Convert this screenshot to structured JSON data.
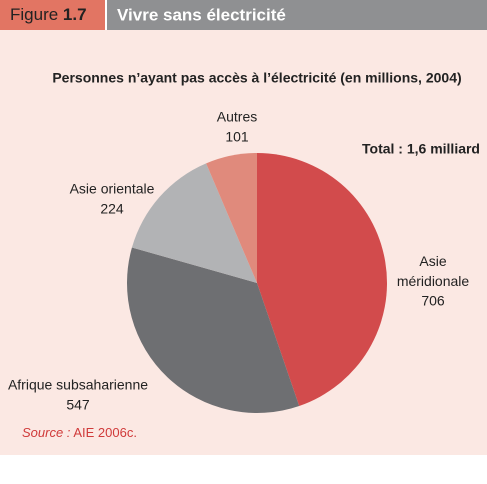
{
  "header": {
    "label": "Figure",
    "number": "1.7",
    "title": "Vivre sans électricité"
  },
  "chart_data": {
    "type": "pie",
    "title": "Personnes n’ayant pas accès à l’électricité (en millions, 2004)",
    "annotation": "Total : 1,6 milliard",
    "categories": [
      "Asie méridionale",
      "Afrique subsaharienne",
      "Asie orientale",
      "Autres"
    ],
    "values": [
      706,
      547,
      224,
      101
    ],
    "colors": [
      "#d24b4c",
      "#6e6f72",
      "#b2b3b5",
      "#e08a7c"
    ]
  },
  "source": {
    "label": "Source :",
    "text": "AIE 2006c."
  }
}
